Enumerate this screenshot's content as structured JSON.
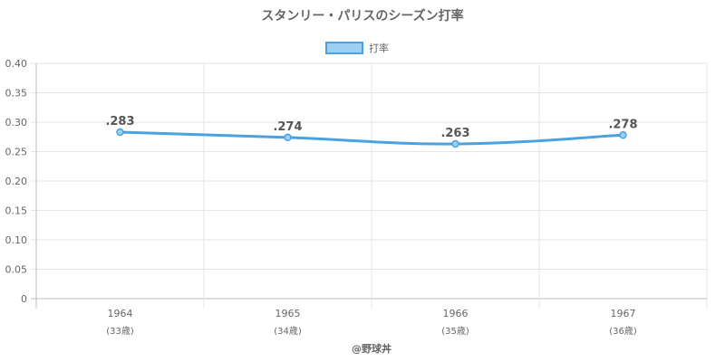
{
  "chart_data": {
    "type": "line",
    "title": "スタンリー・パリスのシーズン打率",
    "legend": {
      "label": "打率",
      "position": "top"
    },
    "categories": [
      "1964",
      "1965",
      "1966",
      "1967"
    ],
    "category_sublabels": [
      "(33歳)",
      "(34歳)",
      "(35歳)",
      "(36歳)"
    ],
    "series": [
      {
        "name": "打率",
        "values": [
          0.283,
          0.274,
          0.263,
          0.278
        ],
        "labels": [
          ".283",
          ".274",
          ".263",
          ".278"
        ]
      }
    ],
    "ylim": [
      0,
      0.4
    ],
    "yticks": [
      "0",
      "0.05",
      "0.10",
      "0.15",
      "0.20",
      "0.25",
      "0.30",
      "0.35",
      "0.40"
    ],
    "grid": true,
    "colors": {
      "line": "#4aa3e0",
      "fill": "#9ccff2",
      "grid": "#e6e6e6",
      "axis": "#bbbbbb"
    }
  },
  "footer": {
    "credit": "@野球丼"
  }
}
